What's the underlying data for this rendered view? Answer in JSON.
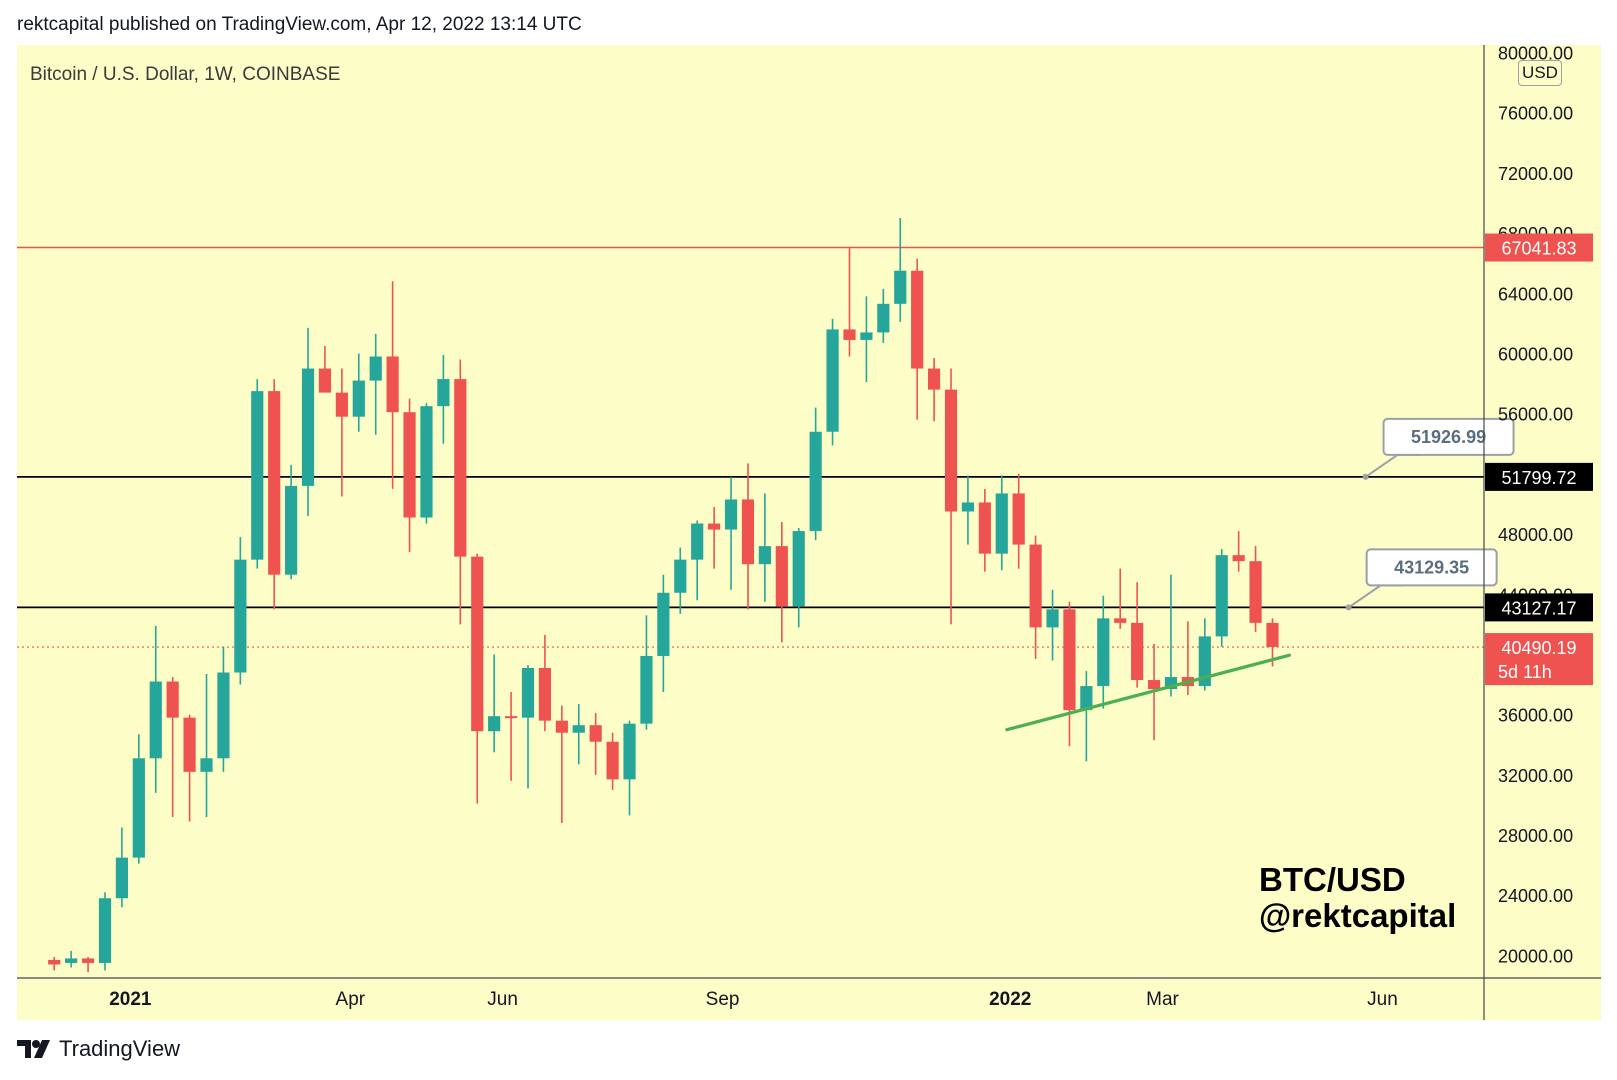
{
  "header": {
    "published_by": "rektcapital published on TradingView.com, Apr 12, 2022 13:14 UTC"
  },
  "symbol": {
    "title": "Bitcoin / U.S. Dollar, 1W, COINBASE",
    "currency": "USD"
  },
  "watermark": {
    "line1": "BTC/USD",
    "line2": "@rektcapital"
  },
  "brand": {
    "name": "TradingView",
    "icon": "tradingview-logo-icon"
  },
  "colors": {
    "background": "#fdfdc8",
    "up": "#26a69a",
    "down": "#ef5350",
    "resistance": "#ef5350",
    "level": "#000000",
    "trendline": "#4caf50",
    "callout_border": "#9aa0a6"
  },
  "chart_data": {
    "type": "candlestick",
    "timeframe": "1W",
    "ylim": [
      18500,
      80500
    ],
    "y_ticks": [
      "80000.00",
      "76000.00",
      "72000.00",
      "68000.00",
      "64000.00",
      "60000.00",
      "56000.00",
      "52000.00",
      "48000.00",
      "44000.00",
      "40000.00",
      "36000.00",
      "32000.00",
      "28000.00",
      "24000.00",
      "20000.00"
    ],
    "x_labels": [
      {
        "label": "2021",
        "week": 4.5,
        "bold": true
      },
      {
        "label": "Apr",
        "week": 17.5,
        "bold": false
      },
      {
        "label": "Jun",
        "week": 26.5,
        "bold": false
      },
      {
        "label": "Sep",
        "week": 39.5,
        "bold": false
      },
      {
        "label": "2022",
        "week": 56.5,
        "bold": true
      },
      {
        "label": "Mar",
        "week": 65.5,
        "bold": false
      },
      {
        "label": "Jun",
        "week": 78.5,
        "bold": false
      }
    ],
    "week_range": [
      -2.2,
      84.5
    ],
    "candles": [
      {
        "o": 19700,
        "h": 19900,
        "l": 19000,
        "c": 19400
      },
      {
        "o": 19500,
        "h": 20300,
        "l": 19200,
        "c": 19800
      },
      {
        "o": 19800,
        "h": 19900,
        "l": 18900,
        "c": 19500
      },
      {
        "o": 19500,
        "h": 24200,
        "l": 19000,
        "c": 23800
      },
      {
        "o": 23800,
        "h": 28500,
        "l": 23200,
        "c": 26500
      },
      {
        "o": 26500,
        "h": 34700,
        "l": 26100,
        "c": 33100
      },
      {
        "o": 33100,
        "h": 41900,
        "l": 30800,
        "c": 38200
      },
      {
        "o": 38200,
        "h": 38500,
        "l": 29200,
        "c": 35800
      },
      {
        "o": 35800,
        "h": 36000,
        "l": 28900,
        "c": 32200
      },
      {
        "o": 32200,
        "h": 38700,
        "l": 29200,
        "c": 33100
      },
      {
        "o": 33100,
        "h": 40500,
        "l": 32200,
        "c": 38800
      },
      {
        "o": 38800,
        "h": 47800,
        "l": 38000,
        "c": 46300
      },
      {
        "o": 46300,
        "h": 58300,
        "l": 45700,
        "c": 57500
      },
      {
        "o": 57500,
        "h": 58300,
        "l": 43000,
        "c": 45300
      },
      {
        "o": 45300,
        "h": 52600,
        "l": 45000,
        "c": 51200
      },
      {
        "o": 51200,
        "h": 61700,
        "l": 49200,
        "c": 59000
      },
      {
        "o": 59000,
        "h": 60500,
        "l": 57500,
        "c": 57400
      },
      {
        "o": 57400,
        "h": 59000,
        "l": 50500,
        "c": 55800
      },
      {
        "o": 55800,
        "h": 60000,
        "l": 54800,
        "c": 58200
      },
      {
        "o": 58200,
        "h": 61300,
        "l": 54600,
        "c": 59800
      },
      {
        "o": 59800,
        "h": 64800,
        "l": 51000,
        "c": 56100
      },
      {
        "o": 56100,
        "h": 57000,
        "l": 46800,
        "c": 49100
      },
      {
        "o": 49100,
        "h": 56700,
        "l": 48700,
        "c": 56500
      },
      {
        "o": 56500,
        "h": 59900,
        "l": 54000,
        "c": 58300
      },
      {
        "o": 58300,
        "h": 59600,
        "l": 42000,
        "c": 46500
      },
      {
        "o": 46500,
        "h": 46700,
        "l": 30100,
        "c": 34900
      },
      {
        "o": 34900,
        "h": 40000,
        "l": 33500,
        "c": 35900
      },
      {
        "o": 35900,
        "h": 37500,
        "l": 31600,
        "c": 35800
      },
      {
        "o": 35800,
        "h": 39300,
        "l": 31100,
        "c": 39100
      },
      {
        "o": 39100,
        "h": 41300,
        "l": 34900,
        "c": 35600
      },
      {
        "o": 35600,
        "h": 36600,
        "l": 28800,
        "c": 34800
      },
      {
        "o": 34800,
        "h": 36700,
        "l": 32700,
        "c": 35300
      },
      {
        "o": 35300,
        "h": 36100,
        "l": 32000,
        "c": 34200
      },
      {
        "o": 34200,
        "h": 34800,
        "l": 31000,
        "c": 31700
      },
      {
        "o": 31700,
        "h": 35600,
        "l": 29300,
        "c": 35400
      },
      {
        "o": 35400,
        "h": 42600,
        "l": 35000,
        "c": 39900
      },
      {
        "o": 39900,
        "h": 45300,
        "l": 37500,
        "c": 44100
      },
      {
        "o": 44100,
        "h": 47100,
        "l": 42700,
        "c": 46300
      },
      {
        "o": 46300,
        "h": 48900,
        "l": 43600,
        "c": 48700
      },
      {
        "o": 48700,
        "h": 49800,
        "l": 45700,
        "c": 48300
      },
      {
        "o": 48300,
        "h": 51800,
        "l": 44300,
        "c": 50300
      },
      {
        "o": 50300,
        "h": 52700,
        "l": 43000,
        "c": 46000
      },
      {
        "o": 46000,
        "h": 50700,
        "l": 43500,
        "c": 47200
      },
      {
        "o": 47200,
        "h": 48800,
        "l": 40800,
        "c": 43200
      },
      {
        "o": 43200,
        "h": 48400,
        "l": 41800,
        "c": 48200
      },
      {
        "o": 48200,
        "h": 56400,
        "l": 47600,
        "c": 54800
      },
      {
        "o": 54800,
        "h": 62300,
        "l": 53900,
        "c": 61600
      },
      {
        "o": 61600,
        "h": 67000,
        "l": 59800,
        "c": 60900
      },
      {
        "o": 60900,
        "h": 63800,
        "l": 58100,
        "c": 61400
      },
      {
        "o": 61400,
        "h": 64300,
        "l": 60700,
        "c": 63300
      },
      {
        "o": 63300,
        "h": 69000,
        "l": 62100,
        "c": 65500
      },
      {
        "o": 65500,
        "h": 66300,
        "l": 55600,
        "c": 59000
      },
      {
        "o": 59000,
        "h": 59700,
        "l": 55500,
        "c": 57600
      },
      {
        "o": 57600,
        "h": 59000,
        "l": 42000,
        "c": 49500
      },
      {
        "o": 49500,
        "h": 51900,
        "l": 47300,
        "c": 50100
      },
      {
        "o": 50100,
        "h": 51000,
        "l": 45500,
        "c": 46700
      },
      {
        "o": 46700,
        "h": 51900,
        "l": 45600,
        "c": 50700
      },
      {
        "o": 50700,
        "h": 52000,
        "l": 45700,
        "c": 47300
      },
      {
        "o": 47300,
        "h": 47900,
        "l": 39700,
        "c": 41800
      },
      {
        "o": 41800,
        "h": 44300,
        "l": 39600,
        "c": 43000
      },
      {
        "o": 43000,
        "h": 43500,
        "l": 33900,
        "c": 36300
      },
      {
        "o": 36300,
        "h": 38900,
        "l": 32900,
        "c": 37900
      },
      {
        "o": 37900,
        "h": 43900,
        "l": 36400,
        "c": 42400
      },
      {
        "o": 42400,
        "h": 45700,
        "l": 41700,
        "c": 42100
      },
      {
        "o": 42100,
        "h": 44800,
        "l": 37800,
        "c": 38300
      },
      {
        "o": 38300,
        "h": 40700,
        "l": 34300,
        "c": 37700
      },
      {
        "o": 37700,
        "h": 45300,
        "l": 37200,
        "c": 38500
      },
      {
        "o": 38500,
        "h": 42200,
        "l": 37300,
        "c": 37900
      },
      {
        "o": 37900,
        "h": 42400,
        "l": 37600,
        "c": 41200
      },
      {
        "o": 41200,
        "h": 47000,
        "l": 40500,
        "c": 46600
      },
      {
        "o": 46600,
        "h": 48200,
        "l": 45500,
        "c": 46200
      },
      {
        "o": 46200,
        "h": 47200,
        "l": 41500,
        "c": 42100
      },
      {
        "o": 42100,
        "h": 42400,
        "l": 39200,
        "c": 40500
      }
    ],
    "levels": [
      {
        "value": 67041.83,
        "label": "67041.83",
        "style": "resistance"
      },
      {
        "value": 51799.72,
        "label": "51799.72",
        "style": "level"
      },
      {
        "value": 43127.17,
        "label": "43127.17",
        "style": "level"
      }
    ],
    "current_price": {
      "value": 40490.19,
      "label": "40490.19",
      "countdown": "5d 11h"
    },
    "callouts": [
      {
        "label": "51926.99",
        "anchor_week": 77.5,
        "anchor_value": 51800
      },
      {
        "label": "43129.35",
        "anchor_week": 76.5,
        "anchor_value": 43127
      }
    ],
    "trendline": {
      "start": {
        "week": 56.3,
        "value": 35000
      },
      "end": {
        "week": 73.0,
        "value": 39950
      }
    }
  }
}
